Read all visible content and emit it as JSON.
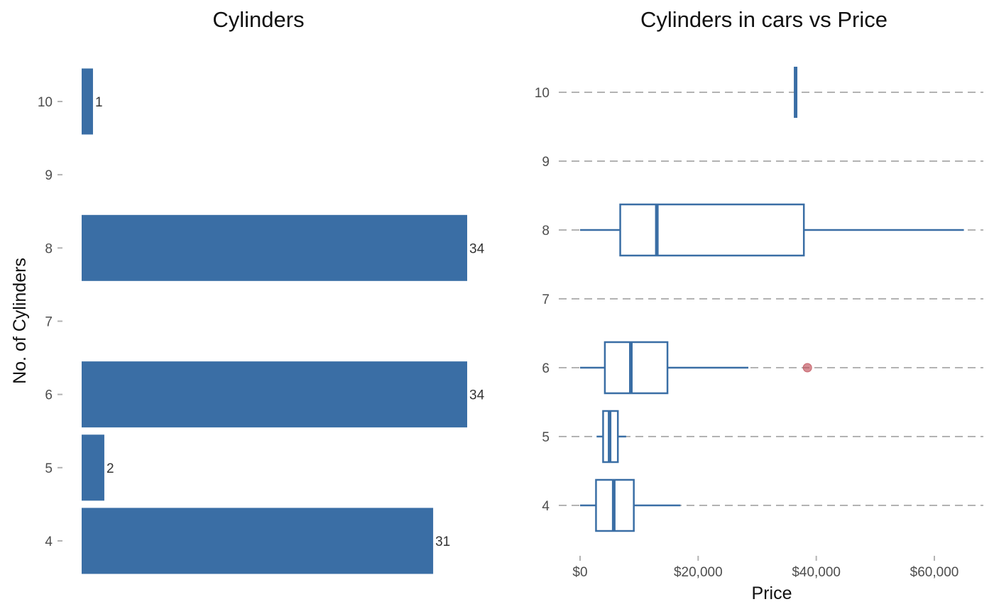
{
  "colors": {
    "bar": "#3a6ea5",
    "box_stroke": "#3a6ea5",
    "outlier": "#c0505a",
    "grid": "#b3b3b3",
    "tick_mark": "#b3b3b3"
  },
  "chart_data": [
    {
      "type": "bar",
      "orientation": "horizontal",
      "title": "Cylinders",
      "ylabel": "No. of Cylinders",
      "xlabel": "",
      "categories": [
        "4",
        "5",
        "6",
        "7",
        "8",
        "9",
        "10"
      ],
      "values": [
        31,
        2,
        34,
        0,
        34,
        0,
        1
      ],
      "data_labels": [
        "31",
        "2",
        "34",
        "",
        "34",
        "",
        "1"
      ],
      "xlim": [
        0,
        34
      ]
    },
    {
      "type": "box",
      "orientation": "horizontal",
      "title": "Cylinders in cars vs Price",
      "xlabel": "Price",
      "ylabel": "",
      "categories": [
        "4",
        "5",
        "6",
        "7",
        "8",
        "9",
        "10"
      ],
      "x_ticks": [
        "$0",
        "$20,000",
        "$40,000",
        "$60,000"
      ],
      "x_tick_values": [
        0,
        20000,
        40000,
        60000
      ],
      "xlim": [
        -1500,
        66500
      ],
      "grid": "horizontal dashed",
      "boxes": [
        {
          "category": "4",
          "min": 0,
          "q1": 2700,
          "median": 5700,
          "q3": 9100,
          "max": 17000
        },
        {
          "category": "5",
          "min": 2800,
          "q1": 3900,
          "median": 5000,
          "q3": 6400,
          "max": 7800
        },
        {
          "category": "6",
          "min": 0,
          "q1": 4200,
          "median": 8600,
          "q3": 14800,
          "max": 28500,
          "outliers": [
            38500
          ]
        },
        {
          "category": "8",
          "min": 0,
          "q1": 6800,
          "median": 13000,
          "q3": 37900,
          "max": 65000
        },
        {
          "category": "10",
          "min": 36500,
          "q1": 36500,
          "median": 36500,
          "q3": 36500,
          "max": 36500
        }
      ]
    }
  ]
}
